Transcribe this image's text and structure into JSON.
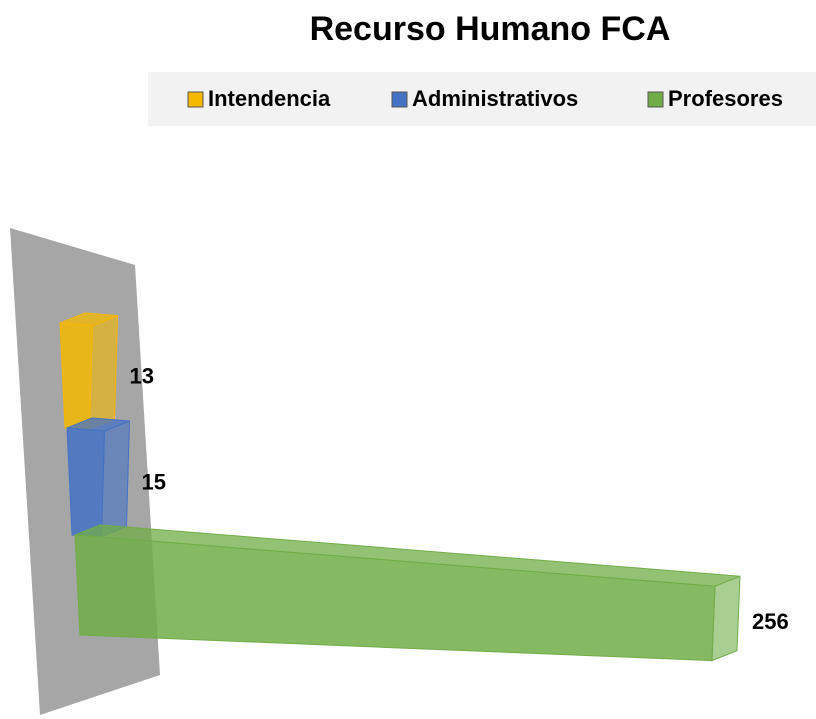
{
  "chart_data": {
    "type": "bar3d",
    "title": "Recurso Humano FCA",
    "series": [
      {
        "name": "Intendencia",
        "color": "#f5b800",
        "values": [
          13
        ]
      },
      {
        "name": "Administrativos",
        "color": "#4472c4",
        "values": [
          15
        ]
      },
      {
        "name": "Profesores",
        "color": "#70ad47",
        "values": [
          256
        ]
      }
    ],
    "legend": "top"
  }
}
